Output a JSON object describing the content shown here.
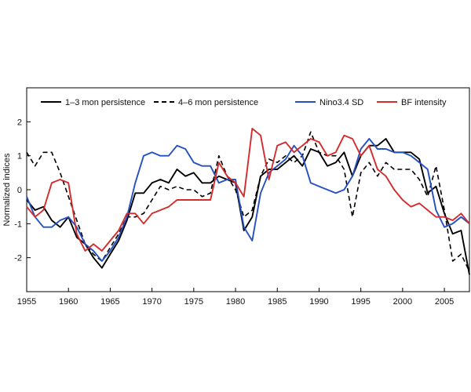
{
  "chart_data": {
    "type": "line",
    "title": "",
    "xlabel": "",
    "ylabel": "Normalized indices",
    "xlim": [
      1955,
      2008
    ],
    "ylim": [
      -3,
      3
    ],
    "x_ticks": [
      1955,
      1960,
      1965,
      1970,
      1975,
      1980,
      1985,
      1990,
      1995,
      2000,
      2005
    ],
    "y_ticks": [
      -2,
      -1,
      0,
      1,
      2
    ],
    "grid": false,
    "legend_position": "top",
    "series": [
      {
        "name": "1–3 mon persistence",
        "color": "#000000",
        "dash": "solid",
        "x": [
          1955,
          1956,
          1957,
          1958,
          1959,
          1960,
          1961,
          1962,
          1963,
          1964,
          1965,
          1966,
          1967,
          1968,
          1969,
          1970,
          1971,
          1972,
          1973,
          1974,
          1975,
          1976,
          1977,
          1978,
          1979,
          1980,
          1981,
          1982,
          1983,
          1984,
          1985,
          1986,
          1987,
          1988,
          1989,
          1990,
          1991,
          1992,
          1993,
          1994,
          1995,
          1996,
          1997,
          1998,
          1999,
          2000,
          2001,
          2002,
          2003,
          2004,
          2005,
          2006,
          2007,
          2008
        ],
        "y": [
          -0.3,
          -0.6,
          -0.5,
          -0.9,
          -1.1,
          -0.8,
          -1.4,
          -1.6,
          -2.0,
          -2.3,
          -1.9,
          -1.5,
          -0.9,
          -0.1,
          -0.1,
          0.2,
          0.3,
          0.2,
          0.6,
          0.4,
          0.5,
          0.2,
          0.2,
          0.4,
          0.3,
          0.2,
          -1.2,
          -0.8,
          0.4,
          0.6,
          0.6,
          0.8,
          1.0,
          0.7,
          1.2,
          1.1,
          0.7,
          0.8,
          1.1,
          0.4,
          1.0,
          1.3,
          1.3,
          1.5,
          1.1,
          1.1,
          1.1,
          0.9,
          -0.1,
          0.1,
          -0.7,
          -1.3,
          -1.2,
          -2.5
        ]
      },
      {
        "name": "4–6 mon persistence",
        "color": "#000000",
        "dash": "dashed",
        "x": [
          1955,
          1956,
          1957,
          1958,
          1959,
          1960,
          1961,
          1962,
          1963,
          1964,
          1965,
          1966,
          1967,
          1968,
          1969,
          1970,
          1971,
          1972,
          1973,
          1974,
          1975,
          1976,
          1977,
          1978,
          1979,
          1980,
          1981,
          1982,
          1983,
          1984,
          1985,
          1986,
          1987,
          1988,
          1989,
          1990,
          1991,
          1992,
          1993,
          1994,
          1995,
          1996,
          1997,
          1998,
          1999,
          2000,
          2001,
          2002,
          2003,
          2004,
          2005,
          2006,
          2007,
          2008
        ],
        "y": [
          1.1,
          0.7,
          1.1,
          1.1,
          0.5,
          -0.2,
          -0.9,
          -1.6,
          -1.9,
          -2.1,
          -1.7,
          -1.3,
          -0.8,
          -0.8,
          -0.7,
          -0.3,
          0.1,
          0.0,
          0.1,
          0.0,
          0.0,
          -0.2,
          -0.1,
          1.0,
          0.4,
          0.0,
          -0.8,
          -0.6,
          0.4,
          0.9,
          0.8,
          1.0,
          0.8,
          1.0,
          1.7,
          1.1,
          1.0,
          1.0,
          0.6,
          -0.8,
          0.5,
          0.8,
          0.4,
          0.8,
          0.6,
          0.6,
          0.6,
          0.3,
          -0.2,
          0.7,
          -0.6,
          -2.1,
          -1.9,
          -2.4
        ]
      },
      {
        "name": "Nino3.4 SD",
        "color": "#2450c0",
        "dash": "solid",
        "x": [
          1955,
          1956,
          1957,
          1958,
          1959,
          1960,
          1961,
          1962,
          1963,
          1964,
          1965,
          1966,
          1967,
          1968,
          1969,
          1970,
          1971,
          1972,
          1973,
          1974,
          1975,
          1976,
          1977,
          1978,
          1979,
          1980,
          1981,
          1982,
          1983,
          1984,
          1985,
          1986,
          1987,
          1988,
          1989,
          1990,
          1991,
          1992,
          1993,
          1994,
          1995,
          1996,
          1997,
          1998,
          1999,
          2000,
          2001,
          2002,
          2003,
          2004,
          2005,
          2006,
          2007,
          2008
        ],
        "y": [
          -0.2,
          -0.8,
          -1.1,
          -1.1,
          -0.9,
          -0.8,
          -1.1,
          -1.6,
          -1.8,
          -2.1,
          -1.8,
          -1.4,
          -0.8,
          0.2,
          1.0,
          1.1,
          1.0,
          1.0,
          1.3,
          1.2,
          0.8,
          0.7,
          0.7,
          0.2,
          0.3,
          0.3,
          -1.1,
          -1.5,
          -0.1,
          0.5,
          0.7,
          0.9,
          1.3,
          1.0,
          0.2,
          0.1,
          0.0,
          -0.1,
          0.0,
          0.4,
          1.2,
          1.5,
          1.2,
          1.2,
          1.1,
          1.1,
          1.0,
          0.8,
          0.6,
          -0.6,
          -1.1,
          -1.0,
          -0.8,
          -1.0
        ]
      },
      {
        "name": "BF intensity",
        "color": "#d42c2c",
        "dash": "solid",
        "x": [
          1955,
          1956,
          1957,
          1958,
          1959,
          1960,
          1961,
          1962,
          1963,
          1964,
          1965,
          1966,
          1967,
          1968,
          1969,
          1970,
          1971,
          1972,
          1973,
          1974,
          1975,
          1976,
          1977,
          1978,
          1979,
          1980,
          1981,
          1982,
          1983,
          1984,
          1985,
          1986,
          1987,
          1988,
          1989,
          1990,
          1991,
          1992,
          1993,
          1994,
          1995,
          1996,
          1997,
          1998,
          1999,
          2000,
          2001,
          2002,
          2003,
          2004,
          2005,
          2006,
          2007,
          2008
        ],
        "y": [
          -0.5,
          -0.8,
          -0.6,
          0.2,
          0.3,
          0.2,
          -1.3,
          -1.8,
          -1.6,
          -1.8,
          -1.5,
          -1.2,
          -0.7,
          -0.7,
          -1.0,
          -0.7,
          -0.6,
          -0.5,
          -0.3,
          -0.3,
          -0.3,
          -0.3,
          -0.3,
          0.8,
          0.4,
          0.2,
          -0.2,
          1.8,
          1.6,
          0.3,
          1.3,
          1.4,
          1.1,
          1.3,
          1.5,
          1.4,
          1.0,
          1.1,
          1.6,
          1.5,
          1.0,
          1.3,
          0.6,
          0.4,
          0.0,
          -0.3,
          -0.5,
          -0.4,
          -0.6,
          -0.8,
          -0.8,
          -0.9,
          -0.7,
          -1.0
        ]
      }
    ]
  }
}
